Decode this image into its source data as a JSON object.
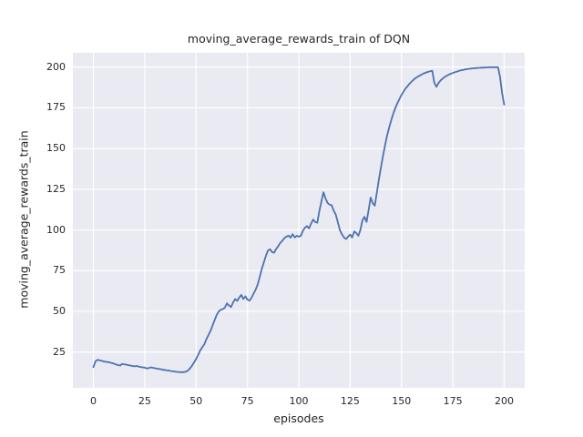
{
  "figure": {
    "background": "#FFFFFF"
  },
  "chart_data": {
    "type": "line",
    "title": "moving_average_rewards_train of DQN",
    "xlabel": "episodes",
    "ylabel": "moving_average_rewards_train",
    "xlim": [
      -10,
      210
    ],
    "ylim": [
      3,
      208.8
    ],
    "xticks": [
      0,
      25,
      50,
      75,
      100,
      125,
      150,
      175,
      200
    ],
    "yticks": [
      25,
      50,
      75,
      100,
      125,
      150,
      175,
      200
    ],
    "grid": true,
    "legend_position": "none",
    "style": {
      "plot_background": "#EAEAF2",
      "grid_color": "#FFFFFF",
      "line_color": "#4C72B0",
      "text_color": "#262626"
    },
    "series": [
      {
        "name": "moving_average_rewards_train",
        "points": [
          [
            0,
            15.7
          ],
          [
            1,
            19.3
          ],
          [
            2,
            20.2
          ],
          [
            3,
            19.9
          ],
          [
            4,
            19.6
          ],
          [
            5,
            19.2
          ],
          [
            6,
            19.0
          ],
          [
            7,
            18.8
          ],
          [
            8,
            18.6
          ],
          [
            9,
            18.2
          ],
          [
            10,
            17.9
          ],
          [
            11,
            17.4
          ],
          [
            12,
            17.0
          ],
          [
            13,
            16.7
          ],
          [
            14,
            17.7
          ],
          [
            15,
            17.5
          ],
          [
            16,
            17.2
          ],
          [
            17,
            17.0
          ],
          [
            18,
            16.7
          ],
          [
            19,
            16.4
          ],
          [
            20,
            16.2
          ],
          [
            21,
            16.4
          ],
          [
            22,
            16.1
          ],
          [
            23,
            15.8
          ],
          [
            24,
            15.6
          ],
          [
            25,
            15.4
          ],
          [
            26,
            14.9
          ],
          [
            27,
            15.2
          ],
          [
            28,
            15.6
          ],
          [
            29,
            15.3
          ],
          [
            30,
            15.0
          ],
          [
            31,
            14.8
          ],
          [
            32,
            14.6
          ],
          [
            33,
            14.4
          ],
          [
            34,
            14.1
          ],
          [
            35,
            13.9
          ],
          [
            36,
            13.7
          ],
          [
            37,
            13.5
          ],
          [
            38,
            13.3
          ],
          [
            39,
            13.1
          ],
          [
            40,
            12.9
          ],
          [
            41,
            12.8
          ],
          [
            42,
            12.7
          ],
          [
            43,
            12.6
          ],
          [
            44,
            12.6
          ],
          [
            45,
            12.9
          ],
          [
            46,
            13.6
          ],
          [
            47,
            14.9
          ],
          [
            48,
            16.6
          ],
          [
            49,
            18.6
          ],
          [
            50,
            20.7
          ],
          [
            51,
            23.2
          ],
          [
            52,
            26.0
          ],
          [
            53,
            27.9
          ],
          [
            54,
            29.8
          ],
          [
            55,
            32.8
          ],
          [
            56,
            35.4
          ],
          [
            57,
            38.0
          ],
          [
            58,
            41.2
          ],
          [
            59,
            44.6
          ],
          [
            60,
            47.6
          ],
          [
            61,
            49.9
          ],
          [
            62,
            50.9
          ],
          [
            63,
            51.4
          ],
          [
            64,
            52.2
          ],
          [
            65,
            54.9
          ],
          [
            66,
            53.6
          ],
          [
            67,
            52.6
          ],
          [
            68,
            55.4
          ],
          [
            69,
            57.6
          ],
          [
            70,
            56.4
          ],
          [
            71,
            58.4
          ],
          [
            72,
            60.1
          ],
          [
            73,
            57.6
          ],
          [
            74,
            59.2
          ],
          [
            75,
            57.2
          ],
          [
            76,
            56.6
          ],
          [
            77,
            58.3
          ],
          [
            78,
            60.9
          ],
          [
            79,
            63.4
          ],
          [
            80,
            66.5
          ],
          [
            81,
            71.2
          ],
          [
            82,
            76.1
          ],
          [
            83,
            80.2
          ],
          [
            84,
            84.1
          ],
          [
            85,
            87.4
          ],
          [
            86,
            88.2
          ],
          [
            87,
            86.4
          ],
          [
            88,
            86.0
          ],
          [
            89,
            88.4
          ],
          [
            90,
            90.1
          ],
          [
            91,
            92.1
          ],
          [
            92,
            93.4
          ],
          [
            93,
            95.0
          ],
          [
            94,
            95.9
          ],
          [
            95,
            96.5
          ],
          [
            96,
            95.2
          ],
          [
            97,
            97.4
          ],
          [
            98,
            95.4
          ],
          [
            99,
            96.4
          ],
          [
            100,
            95.9
          ],
          [
            101,
            96.4
          ],
          [
            102,
            99.4
          ],
          [
            103,
            101.4
          ],
          [
            104,
            102.4
          ],
          [
            105,
            100.9
          ],
          [
            106,
            103.9
          ],
          [
            107,
            106.4
          ],
          [
            108,
            104.9
          ],
          [
            109,
            104.4
          ],
          [
            110,
            111.4
          ],
          [
            111,
            117.4
          ],
          [
            112,
            123.1
          ],
          [
            113,
            119.4
          ],
          [
            114,
            116.6
          ],
          [
            115,
            115.6
          ],
          [
            116,
            115.1
          ],
          [
            117,
            111.9
          ],
          [
            118,
            109.4
          ],
          [
            119,
            104.9
          ],
          [
            120,
            99.9
          ],
          [
            121,
            97.4
          ],
          [
            122,
            95.4
          ],
          [
            123,
            94.4
          ],
          [
            124,
            95.9
          ],
          [
            125,
            97.1
          ],
          [
            126,
            95.4
          ],
          [
            127,
            99.1
          ],
          [
            128,
            98.1
          ],
          [
            129,
            96.4
          ],
          [
            130,
            99.9
          ],
          [
            131,
            105.9
          ],
          [
            132,
            108.1
          ],
          [
            133,
            104.9
          ],
          [
            134,
            112.4
          ],
          [
            135,
            119.9
          ],
          [
            136,
            116.4
          ],
          [
            137,
            114.9
          ],
          [
            138,
            122.9
          ],
          [
            139,
            130.9
          ],
          [
            140,
            138.4
          ],
          [
            141,
            145.4
          ],
          [
            142,
            151.9
          ],
          [
            143,
            157.9
          ],
          [
            144,
            162.9
          ],
          [
            145,
            167.4
          ],
          [
            146,
            171.4
          ],
          [
            147,
            174.9
          ],
          [
            148,
            177.9
          ],
          [
            149,
            180.4
          ],
          [
            150,
            182.9
          ],
          [
            151,
            184.9
          ],
          [
            152,
            186.9
          ],
          [
            153,
            188.4
          ],
          [
            154,
            189.9
          ],
          [
            155,
            191.2
          ],
          [
            156,
            192.4
          ],
          [
            157,
            193.4
          ],
          [
            158,
            194.2
          ],
          [
            159,
            194.9
          ],
          [
            160,
            195.6
          ],
          [
            161,
            196.2
          ],
          [
            162,
            196.7
          ],
          [
            163,
            197.1
          ],
          [
            164,
            197.5
          ],
          [
            165,
            197.7
          ],
          [
            166,
            190.4
          ],
          [
            167,
            187.9
          ],
          [
            168,
            190.2
          ],
          [
            169,
            191.8
          ],
          [
            170,
            192.9
          ],
          [
            171,
            193.9
          ],
          [
            172,
            194.7
          ],
          [
            173,
            195.4
          ],
          [
            174,
            195.9
          ],
          [
            175,
            196.4
          ],
          [
            176,
            196.9
          ],
          [
            177,
            197.3
          ],
          [
            178,
            197.7
          ],
          [
            179,
            198.0
          ],
          [
            180,
            198.3
          ],
          [
            181,
            198.6
          ],
          [
            182,
            198.8
          ],
          [
            183,
            199.0
          ],
          [
            184,
            199.1
          ],
          [
            185,
            199.3
          ],
          [
            186,
            199.4
          ],
          [
            187,
            199.5
          ],
          [
            188,
            199.6
          ],
          [
            189,
            199.7
          ],
          [
            190,
            199.7
          ],
          [
            191,
            199.8
          ],
          [
            192,
            199.8
          ],
          [
            193,
            199.9
          ],
          [
            194,
            199.9
          ],
          [
            195,
            199.9
          ],
          [
            196,
            199.9
          ],
          [
            197,
            199.9
          ],
          [
            198,
            194.0
          ],
          [
            199,
            184.0
          ],
          [
            200,
            176.9
          ]
        ]
      }
    ]
  }
}
